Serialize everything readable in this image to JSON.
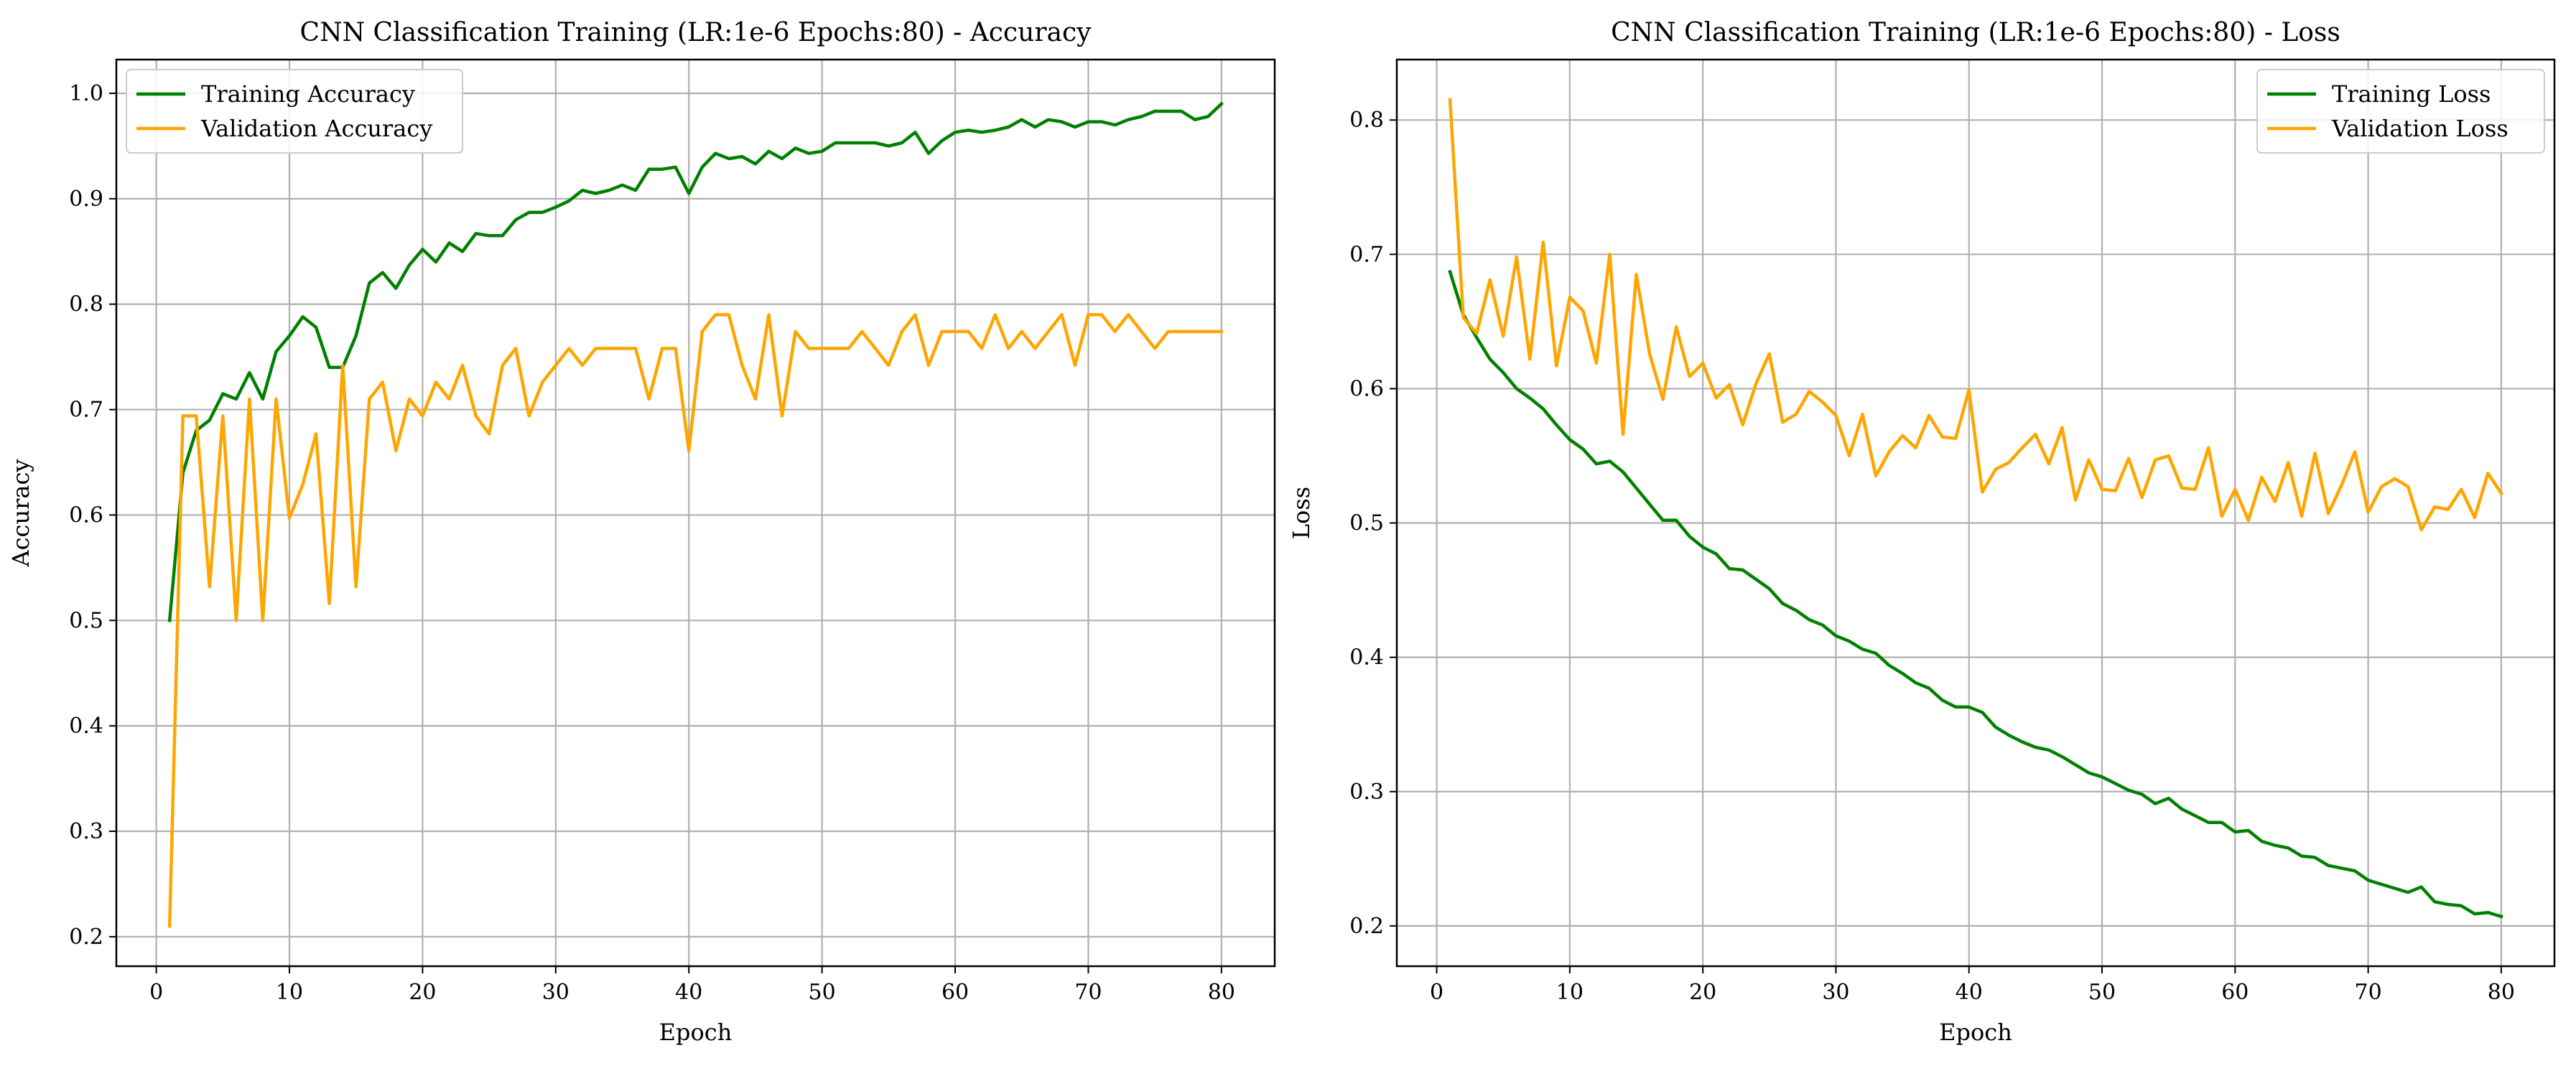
{
  "chart_data": [
    {
      "type": "line",
      "title": "CNN Classification Training (LR:1e-6 Epochs:80) - Accuracy",
      "xlabel": "Epoch",
      "ylabel": "Accuracy",
      "xlim": [
        -3,
        84
      ],
      "ylim": [
        0.172,
        1.032
      ],
      "xticks": [
        0,
        10,
        20,
        30,
        40,
        50,
        60,
        70,
        80
      ],
      "yticks": [
        0.2,
        0.3,
        0.4,
        0.5,
        0.6,
        0.7,
        0.8,
        0.9,
        1.0
      ],
      "ytick_labels": [
        "0.2",
        "0.3",
        "0.4",
        "0.5",
        "0.6",
        "0.7",
        "0.8",
        "0.9",
        "1.0"
      ],
      "grid": true,
      "legend": "upper-left",
      "series": [
        {
          "name": "Training Accuracy",
          "color": "#008000",
          "values": [
            0.5,
            0.64,
            0.68,
            0.69,
            0.715,
            0.71,
            0.735,
            0.71,
            0.755,
            0.77,
            0.788,
            0.778,
            0.74,
            0.74,
            0.77,
            0.82,
            0.83,
            0.815,
            0.837,
            0.852,
            0.84,
            0.858,
            0.85,
            0.867,
            0.865,
            0.865,
            0.88,
            0.887,
            0.887,
            0.892,
            0.898,
            0.908,
            0.905,
            0.908,
            0.913,
            0.908,
            0.928,
            0.928,
            0.93,
            0.905,
            0.93,
            0.943,
            0.938,
            0.94,
            0.933,
            0.945,
            0.938,
            0.948,
            0.943,
            0.945,
            0.953,
            0.953,
            0.953,
            0.953,
            0.95,
            0.953,
            0.963,
            0.943,
            0.955,
            0.963,
            0.965,
            0.963,
            0.965,
            0.968,
            0.975,
            0.968,
            0.975,
            0.973,
            0.968,
            0.973,
            0.973,
            0.97,
            0.975,
            0.978,
            0.983,
            0.983,
            0.983,
            0.975,
            0.978,
            0.99
          ]
        },
        {
          "name": "Validation Accuracy",
          "color": "#FFA500",
          "values": [
            0.21,
            0.694,
            0.694,
            0.532,
            0.694,
            0.5,
            0.71,
            0.5,
            0.71,
            0.597,
            0.629,
            0.677,
            0.516,
            0.742,
            0.532,
            0.71,
            0.726,
            0.661,
            0.71,
            0.694,
            0.726,
            0.71,
            0.742,
            0.694,
            0.677,
            0.742,
            0.758,
            0.694,
            0.726,
            0.742,
            0.758,
            0.742,
            0.758,
            0.758,
            0.758,
            0.758,
            0.71,
            0.758,
            0.758,
            0.661,
            0.774,
            0.79,
            0.79,
            0.742,
            0.71,
            0.79,
            0.694,
            0.774,
            0.758,
            0.758,
            0.758,
            0.758,
            0.774,
            0.758,
            0.742,
            0.774,
            0.79,
            0.742,
            0.774,
            0.774,
            0.774,
            0.758,
            0.79,
            0.758,
            0.774,
            0.758,
            0.774,
            0.79,
            0.742,
            0.79,
            0.79,
            0.774,
            0.79,
            0.774,
            0.758,
            0.774,
            0.774,
            0.774,
            0.774,
            0.774
          ]
        }
      ]
    },
    {
      "type": "line",
      "title": "CNN Classification Training (LR:1e-6 Epochs:80) - Loss",
      "xlabel": "Epoch",
      "ylabel": "Loss",
      "xlim": [
        -3,
        84
      ],
      "ylim": [
        0.17,
        0.845
      ],
      "xticks": [
        0,
        10,
        20,
        30,
        40,
        50,
        60,
        70,
        80
      ],
      "yticks": [
        0.2,
        0.3,
        0.4,
        0.5,
        0.6,
        0.7,
        0.8
      ],
      "ytick_labels": [
        "0.2",
        "0.3",
        "0.4",
        "0.5",
        "0.6",
        "0.7",
        "0.8"
      ],
      "grid": true,
      "legend": "upper-right",
      "series": [
        {
          "name": "Training Loss",
          "color": "#008000",
          "values": [
            0.687,
            0.655,
            0.638,
            0.622,
            0.612,
            0.6,
            0.593,
            0.585,
            0.573,
            0.562,
            0.555,
            0.544,
            0.546,
            0.538,
            0.526,
            0.514,
            0.502,
            0.502,
            0.49,
            0.482,
            0.477,
            0.466,
            0.465,
            0.458,
            0.451,
            0.44,
            0.435,
            0.428,
            0.424,
            0.416,
            0.412,
            0.406,
            0.403,
            0.394,
            0.388,
            0.381,
            0.377,
            0.368,
            0.363,
            0.363,
            0.359,
            0.348,
            0.342,
            0.337,
            0.333,
            0.331,
            0.326,
            0.32,
            0.314,
            0.311,
            0.306,
            0.301,
            0.298,
            0.291,
            0.295,
            0.287,
            0.282,
            0.277,
            0.277,
            0.27,
            0.271,
            0.263,
            0.26,
            0.258,
            0.252,
            0.251,
            0.245,
            0.243,
            0.241,
            0.234,
            0.231,
            0.228,
            0.225,
            0.229,
            0.218,
            0.216,
            0.215,
            0.209,
            0.21,
            0.207
          ]
        },
        {
          "name": "Validation Loss",
          "color": "#FFA500",
          "values": [
            0.815,
            0.653,
            0.641,
            0.681,
            0.639,
            0.698,
            0.622,
            0.709,
            0.617,
            0.668,
            0.658,
            0.619,
            0.7,
            0.566,
            0.685,
            0.626,
            0.592,
            0.646,
            0.609,
            0.619,
            0.593,
            0.603,
            0.573,
            0.604,
            0.626,
            0.575,
            0.581,
            0.598,
            0.59,
            0.58,
            0.55,
            0.581,
            0.535,
            0.553,
            0.565,
            0.556,
            0.58,
            0.564,
            0.563,
            0.599,
            0.523,
            0.54,
            0.545,
            0.556,
            0.566,
            0.544,
            0.571,
            0.517,
            0.547,
            0.525,
            0.524,
            0.548,
            0.519,
            0.547,
            0.55,
            0.526,
            0.525,
            0.556,
            0.505,
            0.525,
            0.502,
            0.534,
            0.516,
            0.545,
            0.505,
            0.552,
            0.507,
            0.528,
            0.553,
            0.508,
            0.527,
            0.533,
            0.527,
            0.495,
            0.512,
            0.51,
            0.525,
            0.504,
            0.537,
            0.522
          ]
        }
      ]
    }
  ]
}
